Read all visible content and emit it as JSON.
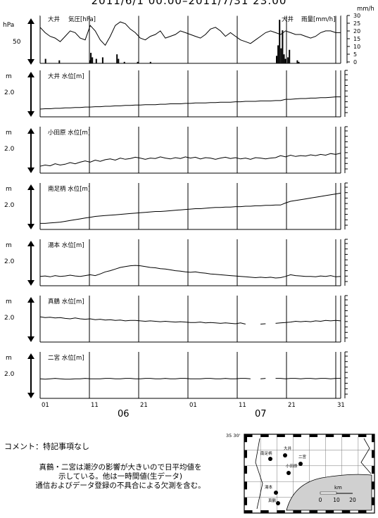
{
  "title": "2011/6/1 00:00–2011/7/31 23:00",
  "comment": "コメント：特記事項なし",
  "notes": [
    "真鶴・二宮は潮汐の影響が大きいので日平均値を",
    "示している。他は一時間値(生データ)",
    "通信およびデータ登録の不具合による欠測を含む。"
  ],
  "map": {
    "lat_label": "35 30'",
    "scale_unit": "km",
    "scale_ticks": [
      "0",
      "10",
      "20"
    ],
    "stations": [
      "南足柄",
      "大井",
      "二宮",
      "小田原",
      "湯本",
      "真鶴"
    ]
  },
  "chart_data": {
    "type": "line",
    "x_range": [
      "2011-06-01 00:00",
      "2011-07-31 23:00"
    ],
    "x_tick_labels": [
      "01",
      "11",
      "21",
      "01",
      "11",
      "21",
      "31"
    ],
    "x_month_labels": [
      "06",
      "07"
    ],
    "top_panel": {
      "pressure": {
        "station_label": "大井",
        "name": "気圧[hPa]",
        "unit": "hPa",
        "tick_label": "50",
        "values_hPa": [
          43,
          40,
          38,
          37,
          35,
          38,
          41,
          40,
          37,
          36,
          44,
          41,
          36,
          33,
          38,
          44,
          46,
          45,
          42,
          40,
          37,
          36,
          38,
          39,
          41,
          37,
          38,
          39,
          41,
          40,
          39,
          38,
          37,
          39,
          42,
          43,
          41,
          38,
          40,
          38,
          36,
          35,
          34,
          36,
          38,
          40,
          41,
          40,
          39,
          41,
          40,
          39,
          39,
          38,
          37,
          38,
          40,
          41,
          41,
          40,
          40
        ]
      },
      "rainfall": {
        "station_label": "大井",
        "name": "雨量[mm/h]",
        "unit": "mm/h",
        "y_ticks": [
          "30",
          "25",
          "20",
          "15",
          "10",
          "5",
          "0"
        ],
        "ylim": [
          0,
          30
        ],
        "events": [
          {
            "day": 1.1,
            "mm": 3
          },
          {
            "day": 3.9,
            "mm": 2
          },
          {
            "day": 10.1,
            "mm": 2
          },
          {
            "day": 10.3,
            "mm": 7
          },
          {
            "day": 10.6,
            "mm": 4
          },
          {
            "day": 11.4,
            "mm": 3
          },
          {
            "day": 12.7,
            "mm": 4
          },
          {
            "day": 15.6,
            "mm": 6
          },
          {
            "day": 15.9,
            "mm": 3
          },
          {
            "day": 17.1,
            "mm": 1
          },
          {
            "day": 19.8,
            "mm": 1
          },
          {
            "day": 22.4,
            "mm": 1
          },
          {
            "day": 48.0,
            "mm": 5
          },
          {
            "day": 48.3,
            "mm": 12
          },
          {
            "day": 48.6,
            "mm": 29
          },
          {
            "day": 48.9,
            "mm": 10
          },
          {
            "day": 49.2,
            "mm": 22
          },
          {
            "day": 49.5,
            "mm": 6
          },
          {
            "day": 49.8,
            "mm": 3
          },
          {
            "day": 50.3,
            "mm": 4
          },
          {
            "day": 50.6,
            "mm": 9
          },
          {
            "day": 52.2,
            "mm": 2
          },
          {
            "day": 52.5,
            "mm": 1
          }
        ]
      }
    },
    "water_level_panels": [
      {
        "label": "大井 水位[m]",
        "unit": "m",
        "tick_label": "2.0",
        "ylim": [
          0,
          1
        ],
        "values": [
          0.12,
          0.13,
          0.13,
          0.14,
          0.14,
          0.15,
          0.15,
          0.16,
          0.16,
          0.17,
          0.17,
          0.18,
          0.18,
          0.19,
          0.19,
          0.2,
          0.2,
          0.21,
          0.21,
          0.22,
          0.22,
          0.23,
          0.23,
          0.23,
          0.24,
          0.24,
          0.25,
          0.25,
          0.25,
          0.26,
          0.26,
          0.27,
          0.27,
          0.27,
          0.28,
          0.28,
          0.29,
          0.29,
          0.29,
          0.3,
          0.3,
          0.31,
          0.31,
          0.31,
          0.32,
          0.32,
          0.32,
          0.33,
          0.33,
          0.36,
          0.36,
          0.37,
          0.38,
          0.38,
          0.39,
          0.39,
          0.4,
          0.4,
          0.41,
          0.42,
          0.42
        ]
      },
      {
        "label": "小田原 水位[m]",
        "unit": "m",
        "tick_label": "2.0",
        "ylim": [
          0,
          1
        ],
        "values": [
          0.1,
          0.13,
          0.11,
          0.16,
          0.13,
          0.15,
          0.19,
          0.16,
          0.2,
          0.23,
          0.2,
          0.25,
          0.22,
          0.26,
          0.28,
          0.25,
          0.3,
          0.27,
          0.29,
          0.32,
          0.3,
          0.27,
          0.3,
          0.29,
          0.33,
          0.3,
          0.28,
          0.31,
          0.29,
          0.33,
          0.3,
          0.32,
          0.28,
          0.31,
          0.3,
          0.27,
          0.3,
          0.32,
          0.29,
          0.31,
          0.28,
          0.3,
          0.27,
          0.31,
          0.3,
          0.28,
          0.3,
          0.31,
          0.36,
          0.33,
          0.37,
          0.34,
          0.36,
          0.35,
          0.38,
          0.36,
          0.39,
          0.37,
          0.41,
          0.39,
          0.42
        ]
      },
      {
        "label": "南足柄 水位[m]",
        "unit": "m",
        "tick_label": "2.0",
        "ylim": [
          0,
          1
        ],
        "values": [
          0.08,
          0.08,
          0.09,
          0.1,
          0.11,
          0.13,
          0.15,
          0.17,
          0.19,
          0.21,
          0.23,
          0.25,
          0.26,
          0.27,
          0.28,
          0.29,
          0.3,
          0.31,
          0.32,
          0.33,
          0.34,
          0.35,
          0.36,
          0.37,
          0.37,
          0.38,
          0.39,
          0.4,
          0.41,
          0.42,
          0.43,
          0.44,
          0.44,
          0.45,
          0.46,
          0.47,
          0.47,
          0.48,
          0.48,
          0.49,
          0.49,
          0.5,
          0.5,
          0.51,
          0.51,
          0.52,
          0.52,
          0.53,
          0.53,
          0.58,
          0.62,
          0.64,
          0.66,
          0.68,
          0.7,
          0.72,
          0.74,
          0.76,
          0.78,
          0.8,
          0.82
        ]
      },
      {
        "label": "湯本 水位[m]",
        "unit": "m",
        "tick_label": "2.0",
        "ylim": [
          0,
          1
        ],
        "values": [
          0.16,
          0.17,
          0.15,
          0.18,
          0.16,
          0.17,
          0.19,
          0.17,
          0.16,
          0.18,
          0.2,
          0.18,
          0.22,
          0.27,
          0.3,
          0.34,
          0.38,
          0.4,
          0.42,
          0.43,
          0.42,
          0.4,
          0.38,
          0.37,
          0.35,
          0.34,
          0.32,
          0.3,
          0.29,
          0.27,
          0.26,
          0.27,
          0.25,
          0.24,
          0.22,
          0.21,
          0.2,
          0.19,
          0.18,
          0.17,
          0.16,
          0.15,
          0.14,
          0.13,
          0.14,
          0.13,
          0.14,
          0.12,
          0.13,
          0.16,
          0.2,
          0.18,
          0.17,
          0.16,
          0.16,
          0.15,
          0.17,
          0.16,
          0.18,
          0.15,
          0.16
        ]
      },
      {
        "label": "真鶴 水位[m]",
        "unit": "m",
        "tick_label": "2.0",
        "ylim": [
          0,
          1
        ],
        "values": [
          0.55,
          0.53,
          0.54,
          0.52,
          0.53,
          0.51,
          0.5,
          0.52,
          0.5,
          0.49,
          0.5,
          0.48,
          0.49,
          0.47,
          0.48,
          0.46,
          0.47,
          0.45,
          0.46,
          0.46,
          0.45,
          0.44,
          0.45,
          0.44,
          0.43,
          0.44,
          0.43,
          0.42,
          0.43,
          0.42,
          0.41,
          0.41,
          0.42,
          0.4,
          0.41,
          0.4,
          0.39,
          0.4,
          0.39,
          0.38,
          0.4,
          0.37,
          null,
          null,
          0.37,
          0.38,
          null,
          0.39,
          0.4,
          0.41,
          0.42,
          0.44,
          0.43,
          0.44,
          0.43,
          0.45,
          0.44,
          0.46,
          0.45,
          0.46,
          0.45
        ]
      },
      {
        "label": "二宮 水位[m]",
        "unit": "m",
        "tick_label": "2.0",
        "ylim": [
          0,
          1
        ],
        "values": [
          0.41,
          0.4,
          0.41,
          0.42,
          0.41,
          0.4,
          0.4,
          0.41,
          0.41,
          0.42,
          0.41,
          0.41,
          0.41,
          0.42,
          0.42,
          0.41,
          0.41,
          0.42,
          0.42,
          0.41,
          0.41,
          0.42,
          0.42,
          0.41,
          0.41,
          0.42,
          0.41,
          0.41,
          0.42,
          0.42,
          0.41,
          0.41,
          0.41,
          0.42,
          0.42,
          0.41,
          0.41,
          0.42,
          0.41,
          0.41,
          0.42,
          0.42,
          0.41,
          null,
          0.41,
          0.42,
          null,
          0.42,
          0.42,
          0.41,
          0.42,
          0.42,
          0.41,
          0.42,
          0.42,
          0.41,
          0.42,
          0.42,
          0.41,
          0.42,
          0.42
        ]
      }
    ]
  }
}
